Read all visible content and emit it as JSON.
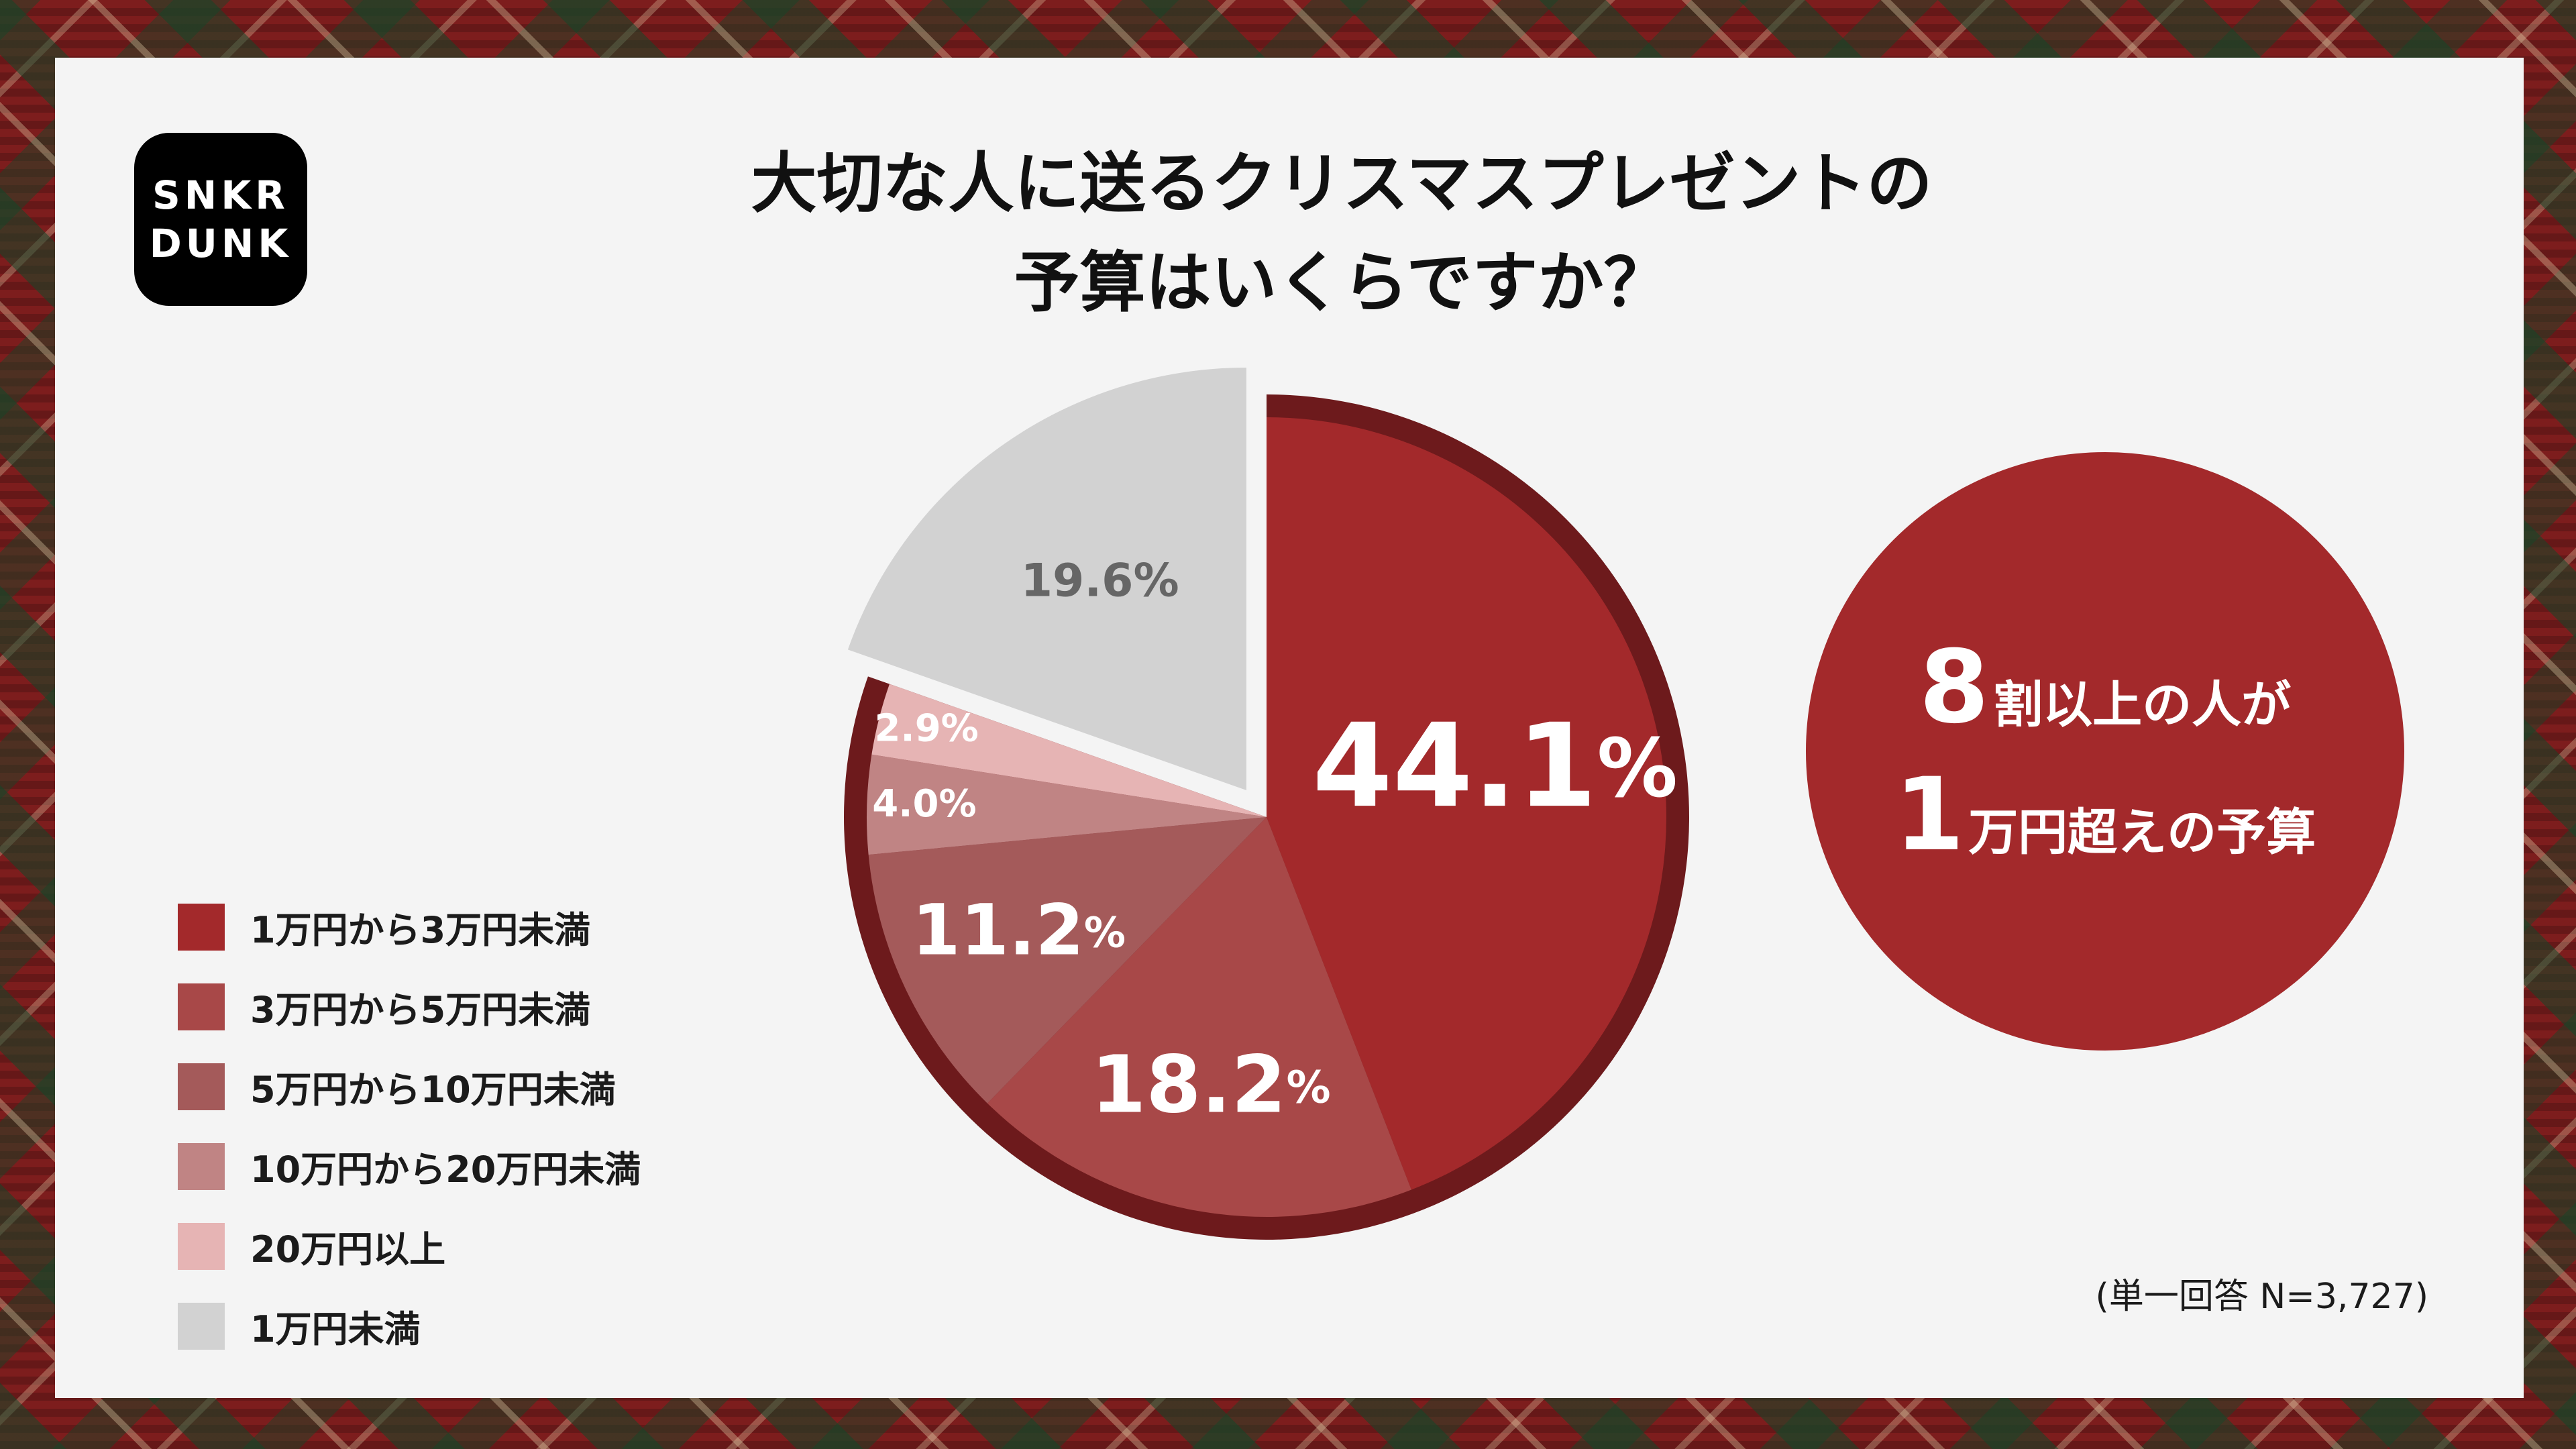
{
  "brand": {
    "line1": "SNKR",
    "line2": "DUNK"
  },
  "title": {
    "line1": "大切な人に送るクリスマスプレゼントの",
    "line2": "予算はいくらですか？"
  },
  "callout": {
    "num1": "8",
    "text1": "割以上の人が",
    "num2": "1",
    "text2": "万円超えの予算"
  },
  "note": "(単一回答 N=3,727)",
  "chart_data": {
    "type": "pie",
    "title": "大切な人に送るクリスマスプレゼントの予算はいくらですか？",
    "slices": [
      {
        "label": "1万円から3万円未満",
        "value": 44.1,
        "display": "44.1",
        "color": "#a3292b",
        "text_color": "#ffffff"
      },
      {
        "label": "3万円から5万円未満",
        "value": 18.2,
        "display": "18.2",
        "color": "#a84848",
        "text_color": "#ffffff"
      },
      {
        "label": "5万円から10万円未満",
        "value": 11.2,
        "display": "11.2",
        "color": "#a45a5a",
        "text_color": "#ffffff"
      },
      {
        "label": "10万円から20万円未満",
        "value": 4.0,
        "display": "4.0",
        "color": "#c08484",
        "text_color": "#ffffff"
      },
      {
        "label": "20万円以上",
        "value": 2.9,
        "display": "2.9",
        "color": "#e6b4b4",
        "text_color": "#ffffff"
      },
      {
        "label": "1万円未満",
        "value": 19.6,
        "display": "19.6",
        "color": "#d2d2d2",
        "text_color": "#666666"
      }
    ],
    "unit": "%",
    "highlight_color": "#6d1a1c",
    "legend_position": "bottom-left"
  }
}
